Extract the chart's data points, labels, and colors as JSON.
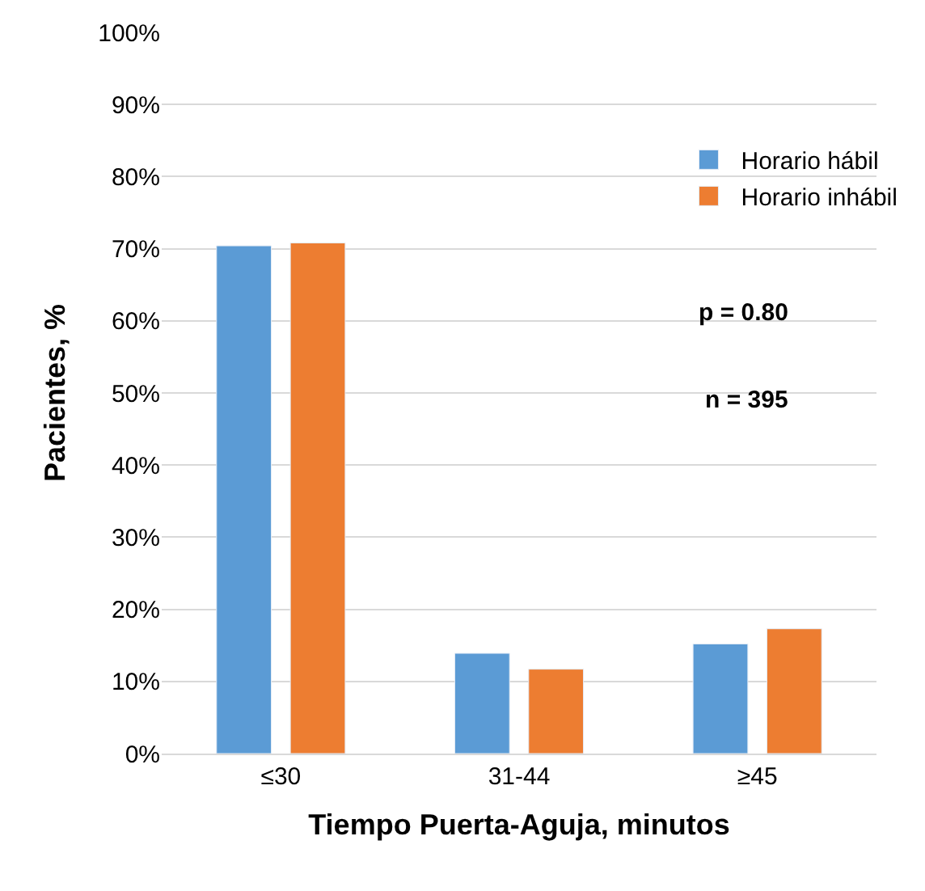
{
  "chart_data": {
    "type": "bar",
    "xlabel": "Tiempo Puerta-Aguja, minutos",
    "ylabel": "Pacientes, %",
    "categories": [
      "≤30",
      "31-44",
      "≥45"
    ],
    "series": [
      {
        "name": "Horario hábil",
        "color": "#5b9bd5",
        "values": [
          70.4,
          13.9,
          15.2
        ]
      },
      {
        "name": "Horario inhábil",
        "color": "#ed7d31",
        "values": [
          70.8,
          11.7,
          17.3
        ]
      }
    ],
    "ylim": [
      0,
      100
    ],
    "yticks": [
      {
        "value": 0,
        "label": "0%"
      },
      {
        "value": 10,
        "label": "10%"
      },
      {
        "value": 20,
        "label": "20%"
      },
      {
        "value": 30,
        "label": "30%"
      },
      {
        "value": 40,
        "label": "40%"
      },
      {
        "value": 50,
        "label": "50%"
      },
      {
        "value": 60,
        "label": "60%"
      },
      {
        "value": 70,
        "label": "70%"
      },
      {
        "value": 80,
        "label": "80%"
      },
      {
        "value": 90,
        "label": "90%"
      },
      {
        "value": 100,
        "label": "100%"
      }
    ],
    "grid": "y",
    "legend": "top right",
    "annotations": [
      "p = 0.80",
      "n = 395"
    ]
  }
}
